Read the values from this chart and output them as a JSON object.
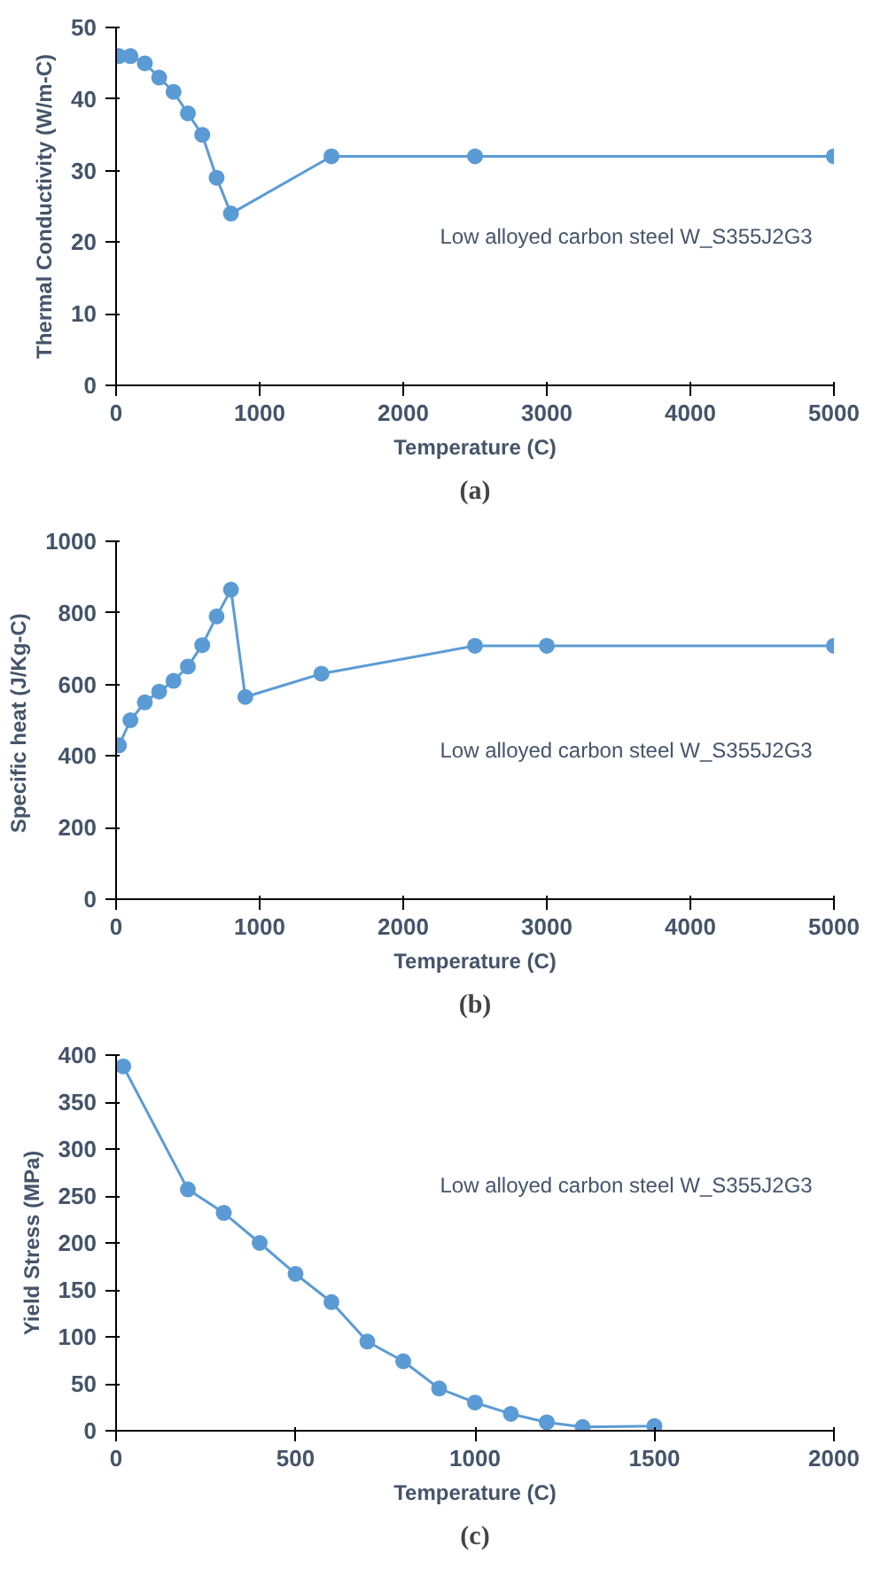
{
  "chart_data": [
    {
      "type": "line",
      "xlabel": "Temperature (C)",
      "ylabel": "Thermal Conductivity (W/m-C)",
      "annotations": [
        "Low alloyed carbon steel W_S355J2G3",
        "(a)"
      ],
      "x": [
        20,
        100,
        200,
        300,
        400,
        500,
        600,
        700,
        800,
        1500,
        2500,
        5000
      ],
      "series": [
        {
          "color": "#5b9bd5",
          "values": [
            46,
            46,
            45,
            43,
            41,
            38,
            35,
            29,
            24,
            32,
            32,
            32
          ]
        }
      ],
      "xlim": [
        0,
        5000
      ],
      "xticks": [
        0,
        1000,
        2000,
        3000,
        4000,
        5000
      ],
      "ylim": [
        0,
        50
      ],
      "yticks": [
        0,
        10,
        20,
        30,
        40,
        50
      ],
      "grid": false,
      "marker": "circle",
      "line_style": "solid"
    },
    {
      "type": "line",
      "xlabel": "Temperature (C)",
      "ylabel": "Specific heat  (J/Kg-C)",
      "annotations": [
        "Low alloyed carbon steel W_S355J2G3",
        "(b)"
      ],
      "x": [
        20,
        100,
        200,
        300,
        400,
        500,
        600,
        700,
        800,
        900,
        1430,
        2500,
        3000,
        5000
      ],
      "series": [
        {
          "color": "#5b9bd5",
          "values": [
            430,
            500,
            550,
            580,
            610,
            650,
            710,
            790,
            865,
            565,
            630,
            708,
            708,
            708
          ]
        }
      ],
      "xlim": [
        0,
        5000
      ],
      "xticks": [
        0,
        1000,
        2000,
        3000,
        4000,
        5000
      ],
      "ylim": [
        0,
        1000
      ],
      "yticks": [
        0,
        200,
        400,
        600,
        800,
        1000
      ],
      "grid": false,
      "marker": "circle",
      "line_style": "solid"
    },
    {
      "type": "line",
      "xlabel": "Temperature (C)",
      "ylabel": "Yield Stress (MPa)",
      "annotations": [
        "Low alloyed carbon steel W_S355J2G3",
        "(c)"
      ],
      "x": [
        20,
        200,
        300,
        400,
        500,
        600,
        700,
        800,
        900,
        1000,
        1100,
        1200,
        1300,
        1500
      ],
      "series": [
        {
          "color": "#5b9bd5",
          "values": [
            388,
            257,
            232,
            200,
            167,
            137,
            95,
            74,
            45,
            30,
            18,
            9,
            4,
            5
          ]
        }
      ],
      "xlim": [
        0,
        2000
      ],
      "xticks": [
        0,
        500,
        1000,
        1500,
        2000
      ],
      "ylim": [
        0,
        400
      ],
      "yticks": [
        0,
        50,
        100,
        150,
        200,
        250,
        300,
        350,
        400
      ],
      "grid": false,
      "marker": "circle",
      "line_style": "solid"
    }
  ]
}
